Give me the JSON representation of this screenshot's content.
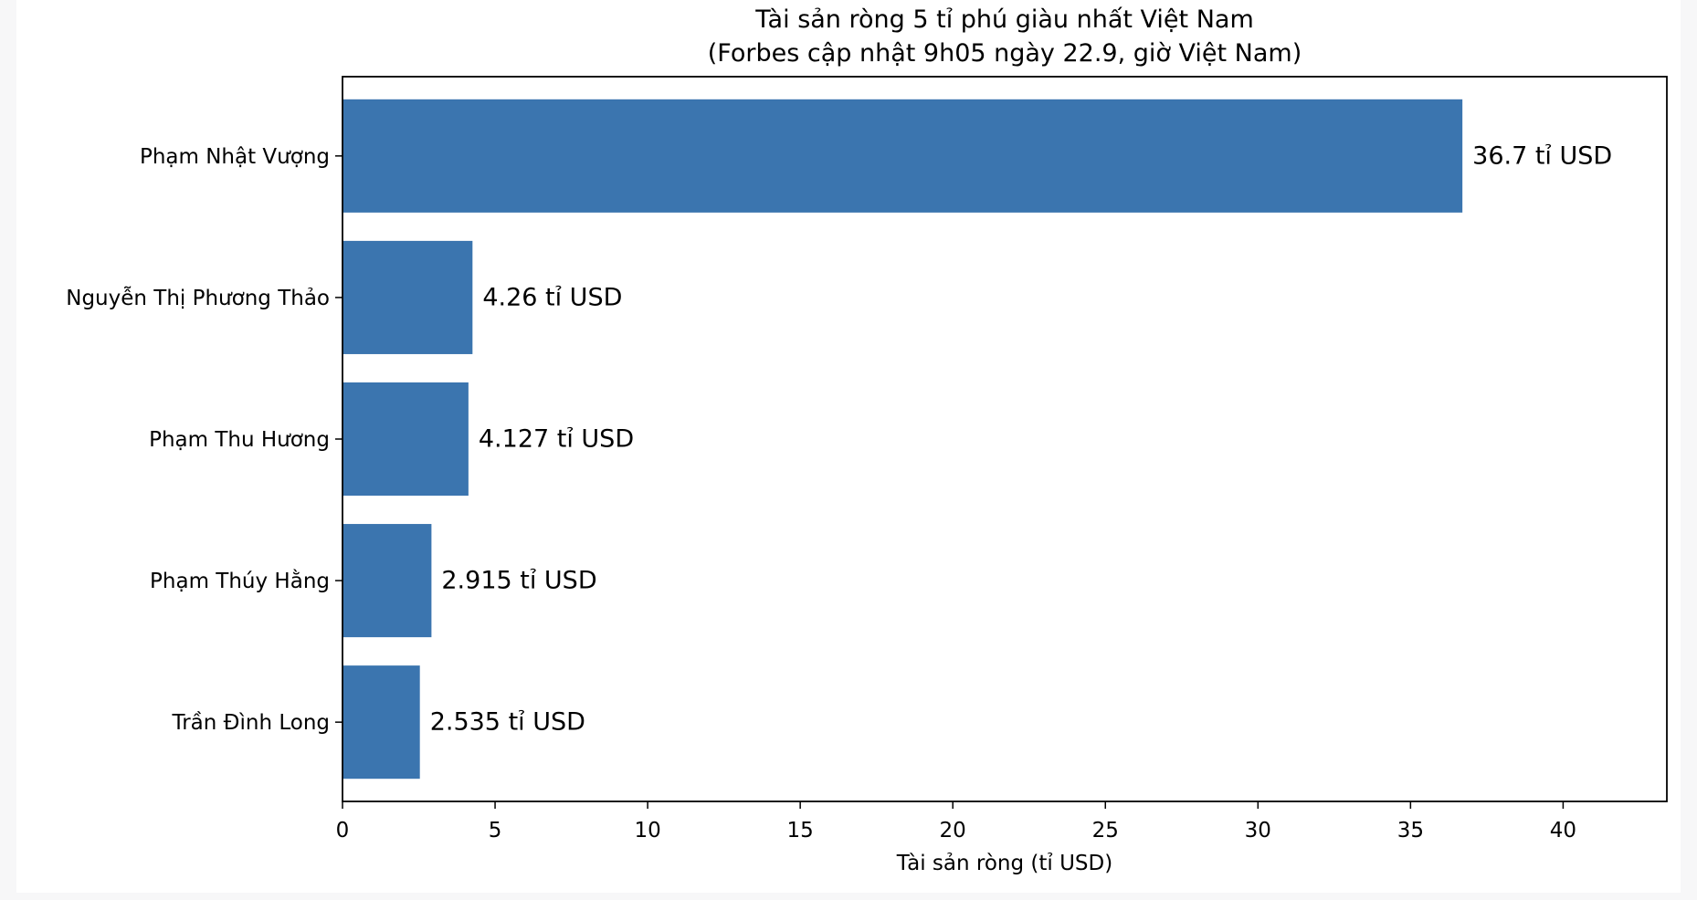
{
  "chart_data": {
    "type": "bar",
    "orientation": "horizontal",
    "title": "Tài sản ròng 5 tỉ phú giàu nhất Việt Nam",
    "subtitle": "(Forbes cập nhật 9h05 ngày 22.9, giờ Việt Nam)",
    "xlabel": "Tài sản ròng (tỉ USD)",
    "ylabel": "",
    "xlim": [
      0,
      43.4
    ],
    "xticks": [
      0,
      5,
      10,
      15,
      20,
      25,
      30,
      35,
      40
    ],
    "grid": false,
    "categories": [
      "Phạm Nhật Vượng",
      "Nguyễn Thị Phương Thảo",
      "Phạm Thu Hương",
      "Phạm Thúy Hằng",
      "Trần Đình Long"
    ],
    "values": [
      36.7,
      4.26,
      4.127,
      2.915,
      2.535
    ],
    "data_labels": [
      "36.7 tỉ USD",
      "4.26 tỉ USD",
      "4.127 tỉ USD",
      "2.915 tỉ USD",
      "2.535 tỉ USD"
    ],
    "bar_color": "#3b75af"
  }
}
